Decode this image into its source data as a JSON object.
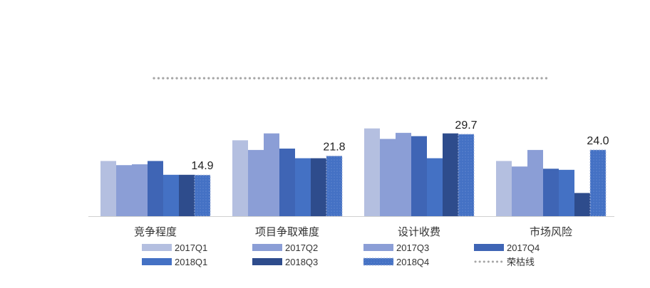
{
  "chart_data": {
    "type": "bar",
    "title": "",
    "xlabel": "",
    "ylabel": "",
    "ylim": [
      0,
      50
    ],
    "grid": false,
    "legend_position": "bottom",
    "categories": [
      "竞争程度",
      "项目争取难度",
      "设计收费",
      "市场风险"
    ],
    "series": [
      {
        "name": "2017Q1",
        "color": "#b4bfe0",
        "values": [
          20.0,
          27.5,
          31.8,
          20.0
        ]
      },
      {
        "name": "2017Q2",
        "color": "#8b9ed6",
        "values": [
          18.5,
          24.0,
          28.0,
          18.0
        ]
      },
      {
        "name": "2017Q3",
        "color": "#8b9ed6",
        "values": [
          18.8,
          30.0,
          30.2,
          24.0
        ]
      },
      {
        "name": "2017Q4",
        "color": "#3f65b5",
        "values": [
          20.0,
          24.5,
          29.0,
          17.2
        ]
      },
      {
        "name": "2018Q1",
        "color": "#4471c4",
        "values": [
          15.0,
          21.0,
          21.0,
          16.8
        ]
      },
      {
        "name": "2018Q3",
        "color": "#2e4c8c",
        "values": [
          15.0,
          21.0,
          30.0,
          8.4
        ]
      },
      {
        "name": "2018Q4",
        "color": "#4471c4",
        "pattern": "dotted-outline",
        "values": [
          14.9,
          21.8,
          29.7,
          24.0
        ]
      }
    ],
    "reference_lines": [
      {
        "name": "荣枯线",
        "value": 50,
        "style": "dotted",
        "color": "#a6a6a6"
      }
    ],
    "data_labels": [
      {
        "series": "2018Q4",
        "category": "竞争程度",
        "text": "14.9"
      },
      {
        "series": "2018Q4",
        "category": "项目争取难度",
        "text": "21.8"
      },
      {
        "series": "2018Q4",
        "category": "设计收费",
        "text": "29.7"
      },
      {
        "series": "2018Q4",
        "category": "市场风险",
        "text": "24.0"
      }
    ]
  }
}
